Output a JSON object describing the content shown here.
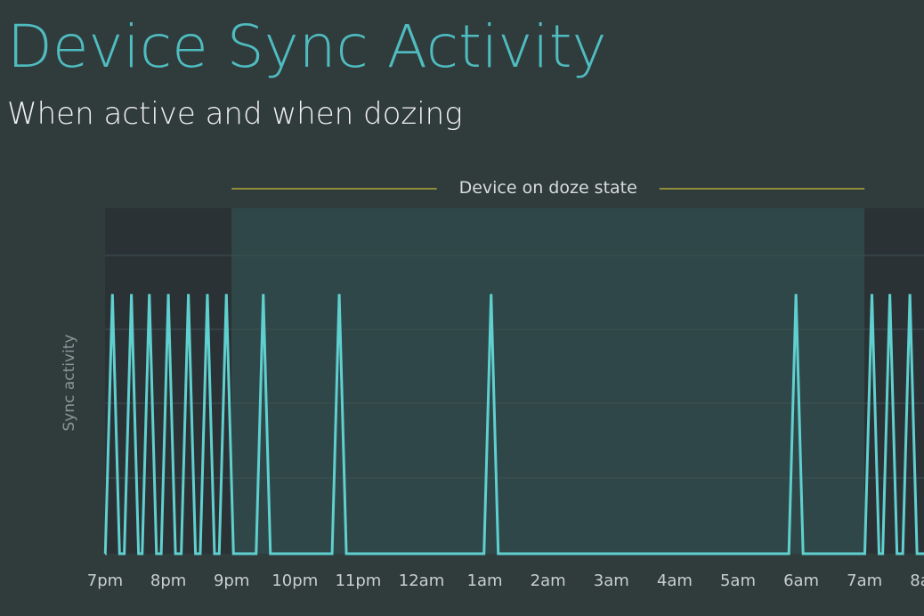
{
  "title": "Device Sync Activity",
  "subtitle": "When active and when dozing",
  "chart_data": {
    "type": "line",
    "title": "Device Sync Activity",
    "subtitle": "When active and when dozing",
    "ylabel": "Sync activity",
    "xlabel": "",
    "x_tick_labels": [
      "7pm",
      "8pm",
      "9pm",
      "10pm",
      "11pm",
      "12am",
      "1am",
      "2am",
      "3am",
      "4am",
      "5am",
      "6am",
      "7am",
      "8am"
    ],
    "xlim": [
      "19:00",
      "08:00"
    ],
    "ylim": [
      0,
      1.33
    ],
    "grid": true,
    "series": [
      {
        "color": "#5fd0cf",
        "spikes_at": [
          "19:07",
          "19:25",
          "19:42",
          "20:00",
          "20:19",
          "20:37",
          "20:55",
          "21:30",
          "22:42",
          "01:06",
          "05:55",
          "07:07",
          "07:24",
          "07:43"
        ],
        "spike_value": 1,
        "baseline_value": 0
      }
    ],
    "annotations": [
      {
        "text": "Device on doze state",
        "from": "21:00",
        "to": "07:00",
        "line_color": "#8f8c3a",
        "region_color": "#2f4748"
      }
    ],
    "active_region_color": "#2b3235"
  }
}
